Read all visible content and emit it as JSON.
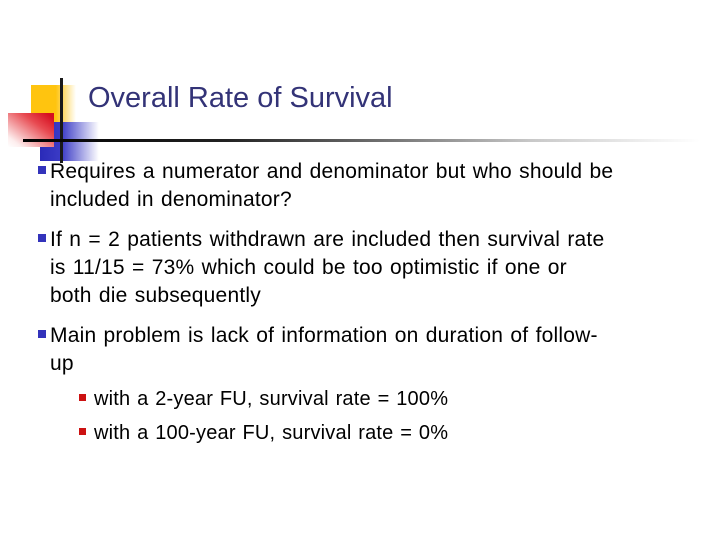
{
  "slide": {
    "title": "Overall Rate of Survival",
    "bullets": [
      {
        "text": "Requires a numerator and denominator but who should be\nincluded in denominator?"
      },
      {
        "text": "If n = 2 patients withdrawn are included then survival rate\nis 11/15 = 73% which could be too optimistic if one or\nboth die subsequently"
      },
      {
        "text": "Main problem is lack of information on duration of follow-\nup",
        "sub_bullets": [
          {
            "text": "with a 2-year FU, survival rate = 100%"
          },
          {
            "text": "with a 100-year FU, survival rate = 0%"
          }
        ]
      }
    ],
    "colors": {
      "title_text": "#333377",
      "body_text": "#000000",
      "bullet_square": "#3333bb",
      "sub_bullet_square": "#cc1111",
      "decor_yellow": "#ffc40f",
      "decor_red": "#d60f20",
      "decor_blue": "#2a2ab8",
      "line": "#1a1a1a",
      "background": "#ffffff"
    }
  }
}
